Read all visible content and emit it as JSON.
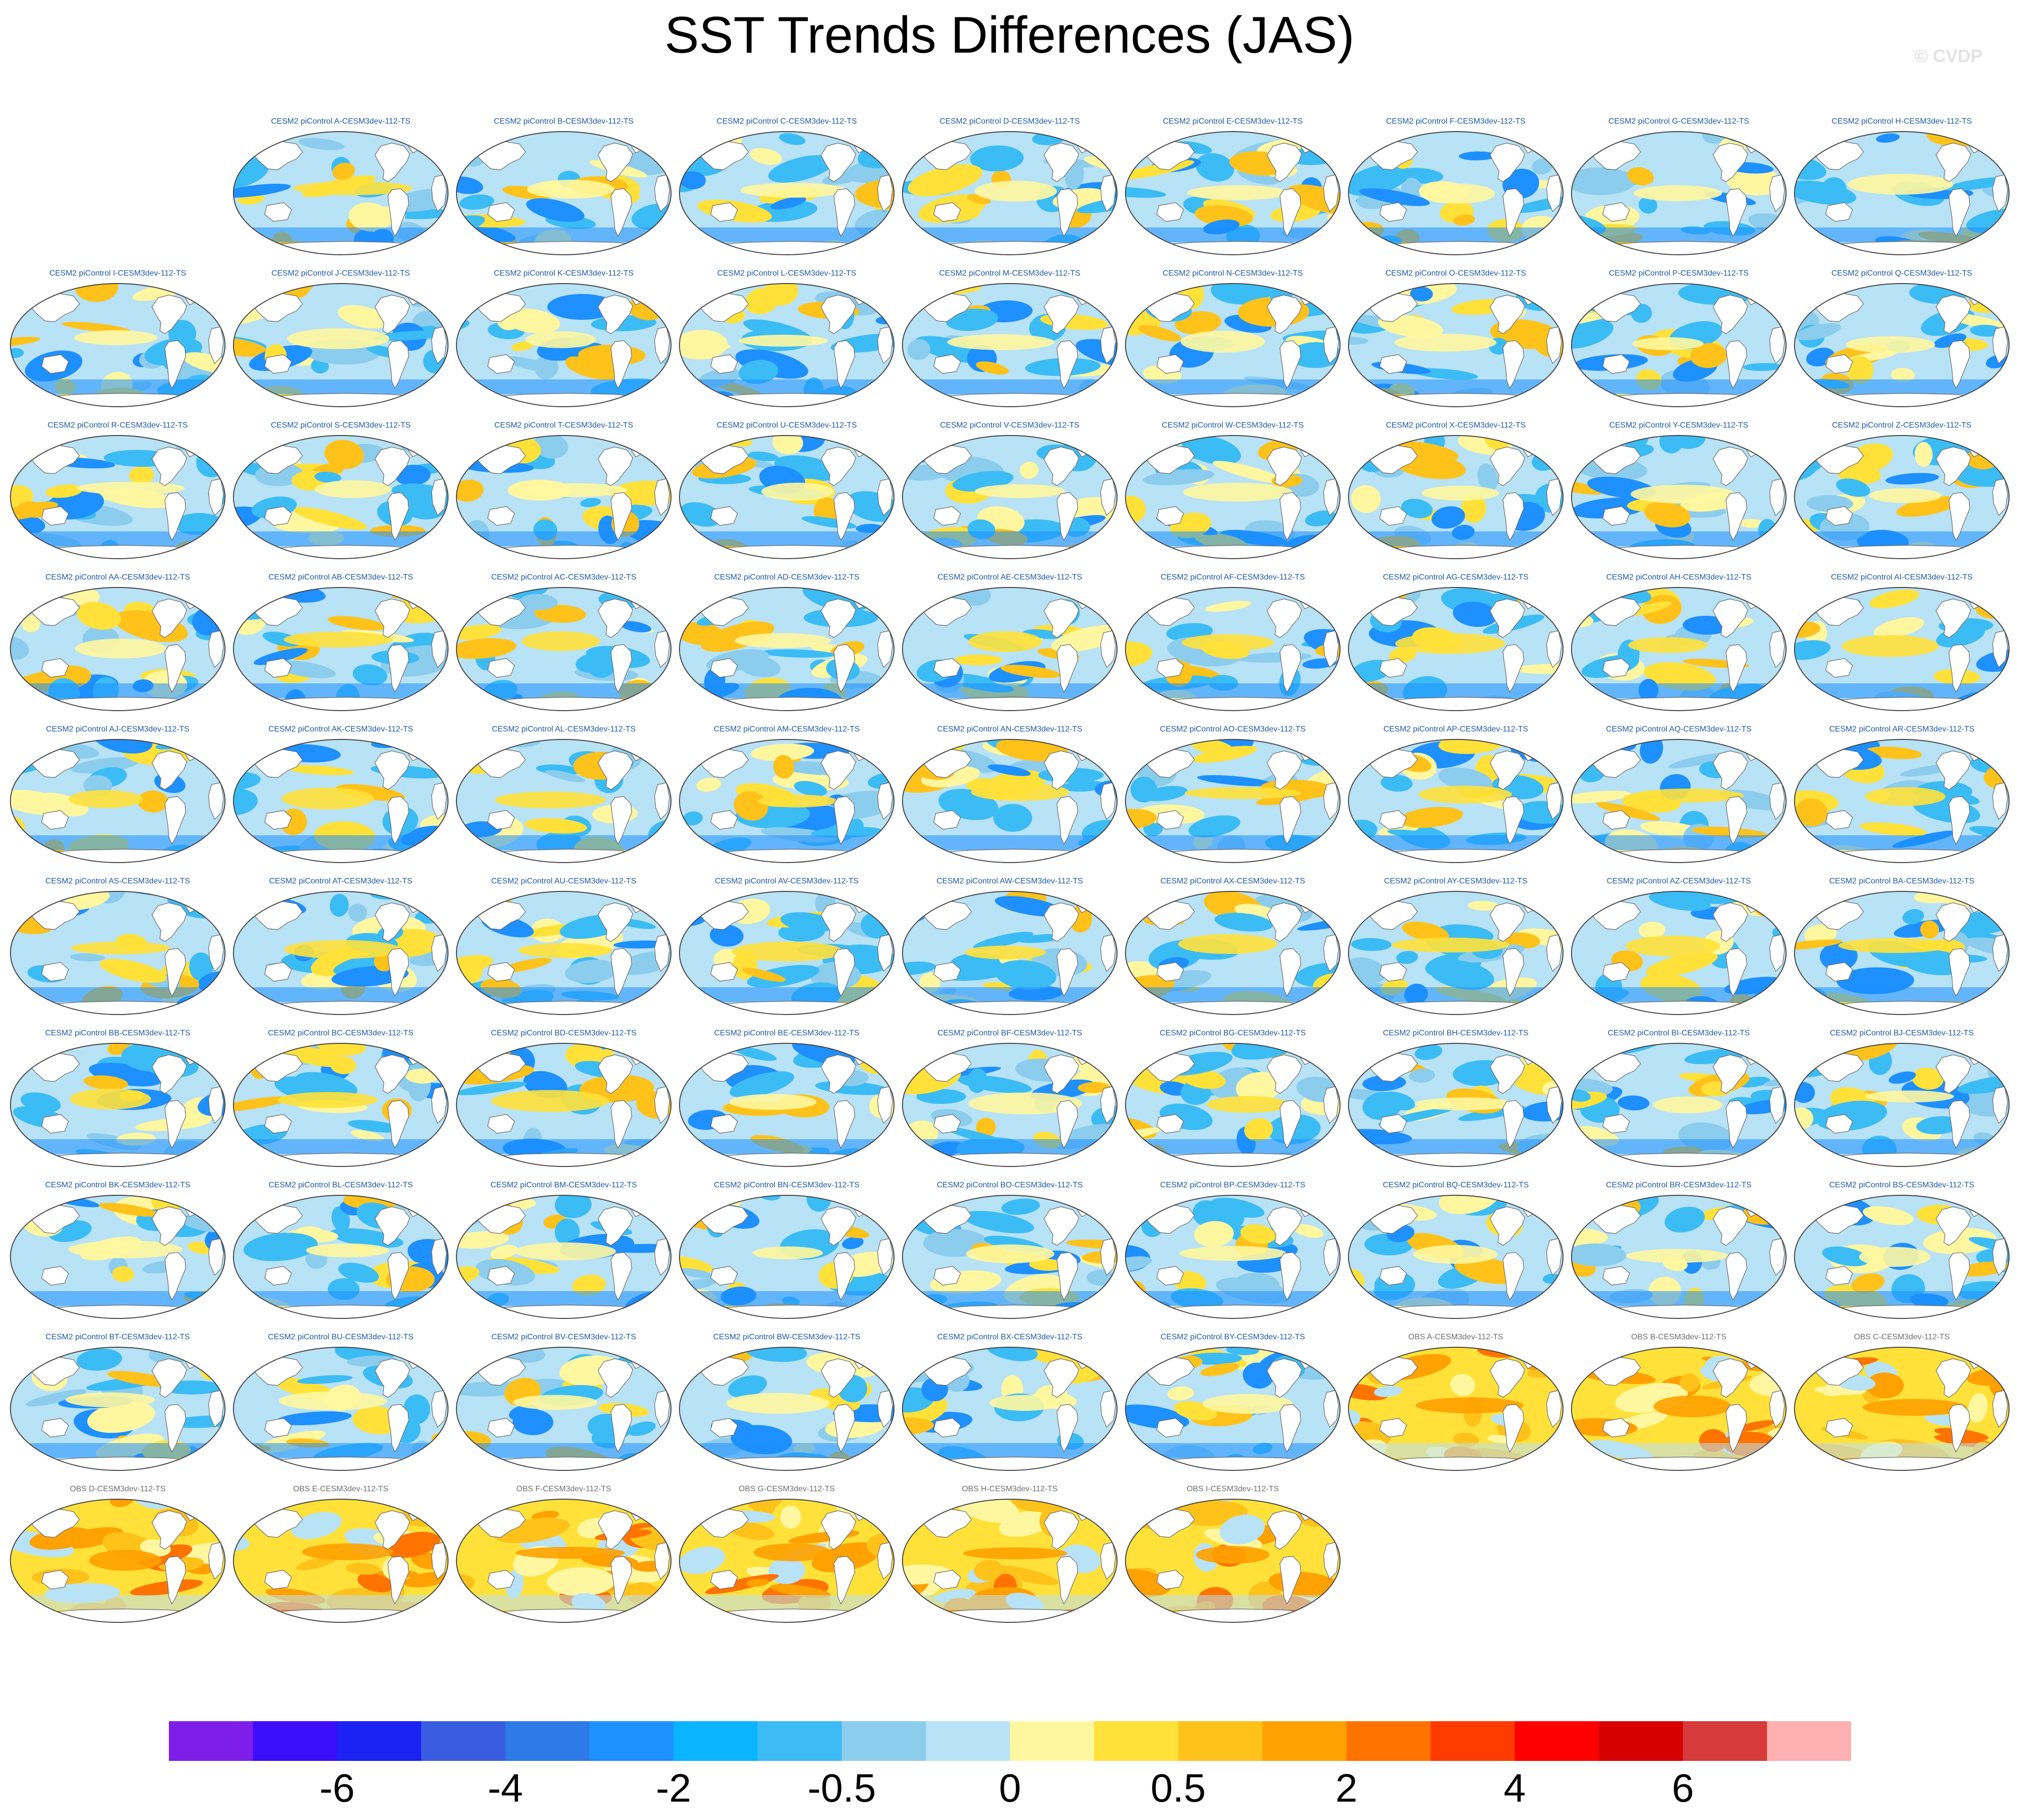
{
  "header": {
    "title": "SST Trends Differences (JAS)",
    "watermark": "© CVDP"
  },
  "chart_data": {
    "type": "heatmap",
    "title": "SST Trends Differences (JAS)",
    "panels": [
      {
        "label": "CESM2 piControl A-CESM3dev-112-TS",
        "group": "model"
      },
      {
        "label": "CESM2 piControl B-CESM3dev-112-TS",
        "group": "model"
      },
      {
        "label": "CESM2 piControl C-CESM3dev-112-TS",
        "group": "model"
      },
      {
        "label": "CESM2 piControl D-CESM3dev-112-TS",
        "group": "model"
      },
      {
        "label": "CESM2 piControl E-CESM3dev-112-TS",
        "group": "model"
      },
      {
        "label": "CESM2 piControl F-CESM3dev-112-TS",
        "group": "model"
      },
      {
        "label": "CESM2 piControl G-CESM3dev-112-TS",
        "group": "model"
      },
      {
        "label": "CESM2 piControl H-CESM3dev-112-TS",
        "group": "model"
      },
      {
        "label": "CESM2 piControl I-CESM3dev-112-TS",
        "group": "model"
      },
      {
        "label": "CESM2 piControl J-CESM3dev-112-TS",
        "group": "model"
      },
      {
        "label": "CESM2 piControl K-CESM3dev-112-TS",
        "group": "model"
      },
      {
        "label": "CESM2 piControl L-CESM3dev-112-TS",
        "group": "model"
      },
      {
        "label": "CESM2 piControl M-CESM3dev-112-TS",
        "group": "model"
      },
      {
        "label": "CESM2 piControl N-CESM3dev-112-TS",
        "group": "model"
      },
      {
        "label": "CESM2 piControl O-CESM3dev-112-TS",
        "group": "model"
      },
      {
        "label": "CESM2 piControl P-CESM3dev-112-TS",
        "group": "model"
      },
      {
        "label": "CESM2 piControl Q-CESM3dev-112-TS",
        "group": "model"
      },
      {
        "label": "CESM2 piControl R-CESM3dev-112-TS",
        "group": "model"
      },
      {
        "label": "CESM2 piControl S-CESM3dev-112-TS",
        "group": "model"
      },
      {
        "label": "CESM2 piControl T-CESM3dev-112-TS",
        "group": "model"
      },
      {
        "label": "CESM2 piControl U-CESM3dev-112-TS",
        "group": "model"
      },
      {
        "label": "CESM2 piControl V-CESM3dev-112-TS",
        "group": "model"
      },
      {
        "label": "CESM2 piControl W-CESM3dev-112-TS",
        "group": "model"
      },
      {
        "label": "CESM2 piControl X-CESM3dev-112-TS",
        "group": "model"
      },
      {
        "label": "CESM2 piControl Y-CESM3dev-112-TS",
        "group": "model"
      },
      {
        "label": "CESM2 piControl Z-CESM3dev-112-TS",
        "group": "model"
      },
      {
        "label": "CESM2 piControl AA-CESM3dev-112-TS",
        "group": "model"
      },
      {
        "label": "CESM2 piControl AB-CESM3dev-112-TS",
        "group": "model"
      },
      {
        "label": "CESM2 piControl AC-CESM3dev-112-TS",
        "group": "model"
      },
      {
        "label": "CESM2 piControl AD-CESM3dev-112-TS",
        "group": "model"
      },
      {
        "label": "CESM2 piControl AE-CESM3dev-112-TS",
        "group": "model"
      },
      {
        "label": "CESM2 piControl AF-CESM3dev-112-TS",
        "group": "model"
      },
      {
        "label": "CESM2 piControl AG-CESM3dev-112-TS",
        "group": "model"
      },
      {
        "label": "CESM2 piControl AH-CESM3dev-112-TS",
        "group": "model"
      },
      {
        "label": "CESM2 piControl AI-CESM3dev-112-TS",
        "group": "model"
      },
      {
        "label": "CESM2 piControl AJ-CESM3dev-112-TS",
        "group": "model"
      },
      {
        "label": "CESM2 piControl AK-CESM3dev-112-TS",
        "group": "model"
      },
      {
        "label": "CESM2 piControl AL-CESM3dev-112-TS",
        "group": "model"
      },
      {
        "label": "CESM2 piControl AM-CESM3dev-112-TS",
        "group": "model"
      },
      {
        "label": "CESM2 piControl AN-CESM3dev-112-TS",
        "group": "model"
      },
      {
        "label": "CESM2 piControl AO-CESM3dev-112-TS",
        "group": "model"
      },
      {
        "label": "CESM2 piControl AP-CESM3dev-112-TS",
        "group": "model"
      },
      {
        "label": "CESM2 piControl AQ-CESM3dev-112-TS",
        "group": "model"
      },
      {
        "label": "CESM2 piControl AR-CESM3dev-112-TS",
        "group": "model"
      },
      {
        "label": "CESM2 piControl AS-CESM3dev-112-TS",
        "group": "model"
      },
      {
        "label": "CESM2 piControl AT-CESM3dev-112-TS",
        "group": "model"
      },
      {
        "label": "CESM2 piControl AU-CESM3dev-112-TS",
        "group": "model"
      },
      {
        "label": "CESM2 piControl AV-CESM3dev-112-TS",
        "group": "model"
      },
      {
        "label": "CESM2 piControl AW-CESM3dev-112-TS",
        "group": "model"
      },
      {
        "label": "CESM2 piControl AX-CESM3dev-112-TS",
        "group": "model"
      },
      {
        "label": "CESM2 piControl AY-CESM3dev-112-TS",
        "group": "model"
      },
      {
        "label": "CESM2 piControl AZ-CESM3dev-112-TS",
        "group": "model"
      },
      {
        "label": "CESM2 piControl BA-CESM3dev-112-TS",
        "group": "model"
      },
      {
        "label": "CESM2 piControl BB-CESM3dev-112-TS",
        "group": "model"
      },
      {
        "label": "CESM2 piControl BC-CESM3dev-112-TS",
        "group": "model"
      },
      {
        "label": "CESM2 piControl BD-CESM3dev-112-TS",
        "group": "model"
      },
      {
        "label": "CESM2 piControl BE-CESM3dev-112-TS",
        "group": "model"
      },
      {
        "label": "CESM2 piControl BF-CESM3dev-112-TS",
        "group": "model"
      },
      {
        "label": "CESM2 piControl BG-CESM3dev-112-TS",
        "group": "model"
      },
      {
        "label": "CESM2 piControl BH-CESM3dev-112-TS",
        "group": "model"
      },
      {
        "label": "CESM2 piControl BI-CESM3dev-112-TS",
        "group": "model"
      },
      {
        "label": "CESM2 piControl BJ-CESM3dev-112-TS",
        "group": "model"
      },
      {
        "label": "CESM2 piControl BK-CESM3dev-112-TS",
        "group": "model"
      },
      {
        "label": "CESM2 piControl BL-CESM3dev-112-TS",
        "group": "model"
      },
      {
        "label": "CESM2 piControl BM-CESM3dev-112-TS",
        "group": "model"
      },
      {
        "label": "CESM2 piControl BN-CESM3dev-112-TS",
        "group": "model"
      },
      {
        "label": "CESM2 piControl BO-CESM3dev-112-TS",
        "group": "model"
      },
      {
        "label": "CESM2 piControl BP-CESM3dev-112-TS",
        "group": "model"
      },
      {
        "label": "CESM2 piControl BQ-CESM3dev-112-TS",
        "group": "model"
      },
      {
        "label": "CESM2 piControl BR-CESM3dev-112-TS",
        "group": "model"
      },
      {
        "label": "CESM2 piControl BS-CESM3dev-112-TS",
        "group": "model"
      },
      {
        "label": "CESM2 piControl BT-CESM3dev-112-TS",
        "group": "model"
      },
      {
        "label": "CESM2 piControl BU-CESM3dev-112-TS",
        "group": "model"
      },
      {
        "label": "CESM2 piControl BV-CESM3dev-112-TS",
        "group": "model"
      },
      {
        "label": "CESM2 piControl BW-CESM3dev-112-TS",
        "group": "model"
      },
      {
        "label": "CESM2 piControl BX-CESM3dev-112-TS",
        "group": "model"
      },
      {
        "label": "CESM2 piControl BY-CESM3dev-112-TS",
        "group": "model"
      },
      {
        "label": "OBS A-CESM3dev-112-TS",
        "group": "obs"
      },
      {
        "label": "OBS B-CESM3dev-112-TS",
        "group": "obs"
      },
      {
        "label": "OBS C-CESM3dev-112-TS",
        "group": "obs"
      },
      {
        "label": "OBS D-CESM3dev-112-TS",
        "group": "obs"
      },
      {
        "label": "OBS E-CESM3dev-112-TS",
        "group": "obs"
      },
      {
        "label": "OBS F-CESM3dev-112-TS",
        "group": "obs"
      },
      {
        "label": "OBS G-CESM3dev-112-TS",
        "group": "obs"
      },
      {
        "label": "OBS H-CESM3dev-112-TS",
        "group": "obs"
      },
      {
        "label": "OBS I-CESM3dev-112-TS",
        "group": "obs"
      }
    ],
    "colorbar": {
      "colors": [
        "#7e1fe9",
        "#3c0dfa",
        "#1a23f2",
        "#3a5ddf",
        "#2e7ae9",
        "#1e90ff",
        "#0ab4ff",
        "#3cbcf5",
        "#8ccdee",
        "#b8e2f5",
        "#fff7a0",
        "#ffe13a",
        "#ffc21a",
        "#ffa100",
        "#ff7300",
        "#ff3b00",
        "#ff0000",
        "#d60000",
        "#d63a3a",
        "#ffb0b0"
      ],
      "tick_labels": [
        {
          "label": "-6",
          "after_box": 2
        },
        {
          "label": "-4",
          "after_box": 4
        },
        {
          "label": "-2",
          "after_box": 6
        },
        {
          "label": "-0.5",
          "after_box": 8
        },
        {
          "label": "0",
          "after_box": 10
        },
        {
          "label": "0.5",
          "after_box": 12
        },
        {
          "label": "2",
          "after_box": 14
        },
        {
          "label": "4",
          "after_box": 16
        },
        {
          "label": "6",
          "after_box": 18
        }
      ]
    }
  }
}
